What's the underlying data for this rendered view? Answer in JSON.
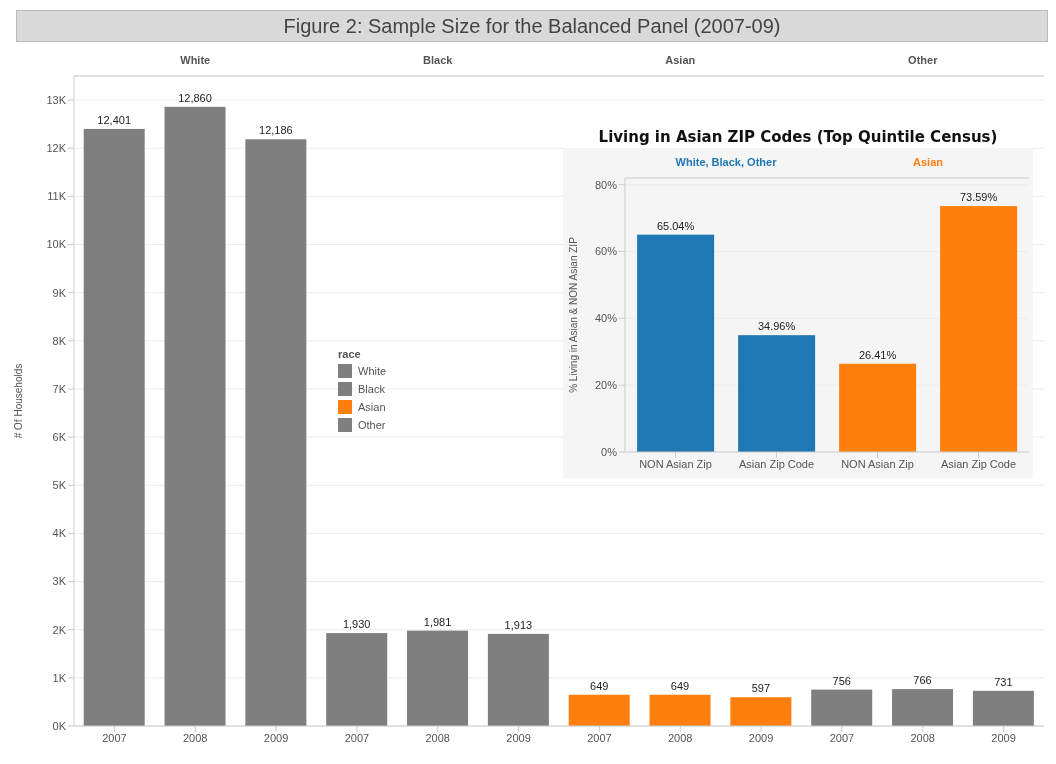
{
  "chart_data": [
    {
      "type": "bar",
      "title": "Figure 2: Sample Size for the Balanced Panel (2007-09)",
      "ylabel": "# Of Households",
      "legend_title": "race",
      "legend": "left",
      "grid": "y",
      "stacked": true,
      "categories": [
        "2007",
        "2008",
        "2009",
        "2007",
        "2008",
        "2009",
        "2007",
        "2008",
        "2009",
        "2007",
        "2008",
        "2009"
      ],
      "ylim": [
        0,
        13500
      ],
      "yticks": [
        {
          "value": 0,
          "label": "0K"
        },
        {
          "value": 1000,
          "label": "1K"
        },
        {
          "value": 2000,
          "label": "2K"
        },
        {
          "value": 3000,
          "label": "3K"
        },
        {
          "value": 4000,
          "label": "4K"
        },
        {
          "value": 5000,
          "label": "5K"
        },
        {
          "value": 6000,
          "label": "6K"
        },
        {
          "value": 7000,
          "label": "7K"
        },
        {
          "value": 8000,
          "label": "8K"
        },
        {
          "value": 9000,
          "label": "9K"
        },
        {
          "value": 10000,
          "label": "10K"
        },
        {
          "value": 11000,
          "label": "11K"
        },
        {
          "value": 12000,
          "label": "12K"
        },
        {
          "value": 13000,
          "label": "13K"
        }
      ],
      "series": [
        {
          "name": "White",
          "color": "#7f7f7f",
          "values": [
            12401,
            12860,
            12186,
            null,
            null,
            null,
            null,
            null,
            null,
            null,
            null,
            null
          ],
          "value_labels": [
            "12,401",
            "12,860",
            "12,186",
            null,
            null,
            null,
            null,
            null,
            null,
            null,
            null,
            null
          ]
        },
        {
          "name": "Black",
          "color": "#7f7f7f",
          "values": [
            null,
            null,
            null,
            1930,
            1981,
            1913,
            null,
            null,
            null,
            null,
            null,
            null
          ],
          "value_labels": [
            null,
            null,
            null,
            "1,930",
            "1,981",
            "1,913",
            null,
            null,
            null,
            null,
            null,
            null
          ]
        },
        {
          "name": "Asian",
          "color": "#ff7f0e",
          "values": [
            null,
            null,
            null,
            null,
            null,
            null,
            649,
            649,
            597,
            null,
            null,
            null
          ],
          "value_labels": [
            null,
            null,
            null,
            null,
            null,
            null,
            "649",
            "649",
            "597",
            null,
            null,
            null
          ]
        },
        {
          "name": "Other",
          "color": "#7f7f7f",
          "values": [
            null,
            null,
            null,
            null,
            null,
            null,
            null,
            null,
            null,
            756,
            766,
            731
          ],
          "value_labels": [
            null,
            null,
            null,
            null,
            null,
            null,
            null,
            null,
            null,
            "756",
            "766",
            "731"
          ]
        }
      ]
    },
    {
      "type": "bar",
      "title": "Living in Asian ZIP Codes (Top Quintile Census)",
      "ylabel": "% Living in Asian & NON Asian ZIP",
      "grid": "y",
      "stacked": true,
      "categories": [
        "NON Asian Zip",
        "Asian Zip Code",
        "NON Asian Zip",
        "Asian Zip Code"
      ],
      "ylim": [
        0,
        82
      ],
      "yticks": [
        {
          "value": 0,
          "label": "0%"
        },
        {
          "value": 20,
          "label": "20%"
        },
        {
          "value": 40,
          "label": "40%"
        },
        {
          "value": 60,
          "label": "60%"
        },
        {
          "value": 80,
          "label": "80%"
        }
      ],
      "series": [
        {
          "name": "White, Black, Other",
          "color": "#1f77b4",
          "values": [
            65.04,
            34.96,
            null,
            null
          ],
          "value_labels": [
            "65.04%",
            "34.96%",
            null,
            null
          ]
        },
        {
          "name": "Asian",
          "color": "#ff7f0e",
          "values": [
            null,
            null,
            26.41,
            73.59
          ],
          "value_labels": [
            null,
            null,
            "26.41%",
            "73.59%"
          ]
        }
      ]
    }
  ]
}
